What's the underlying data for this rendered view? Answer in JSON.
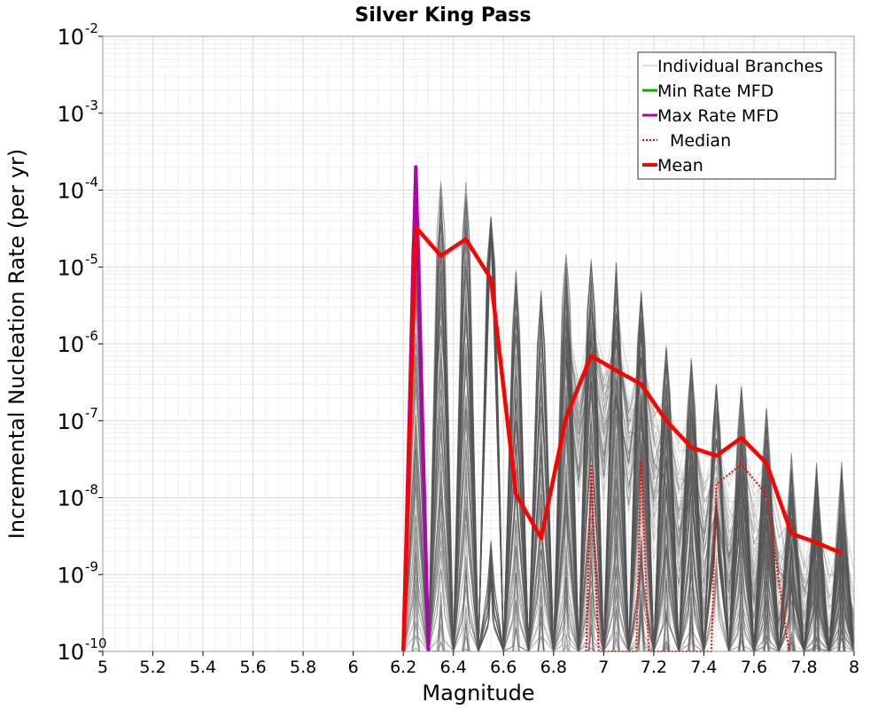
{
  "chart_data": {
    "type": "line",
    "title": "Silver King Pass",
    "xlabel": "Magnitude",
    "ylabel": "Incremental Nucleation Rate (per yr)",
    "xlim": [
      5,
      8
    ],
    "ylim": [
      1e-10,
      0.01
    ],
    "yscale": "log",
    "xticks": [
      "5",
      "5.2",
      "5.4",
      "5.6",
      "5.8",
      "6",
      "6.2",
      "6.4",
      "6.6",
      "6.8",
      "7",
      "7.2",
      "7.4",
      "7.6",
      "7.8",
      "8"
    ],
    "yticks": [
      {
        "base": "10",
        "exp": "-10"
      },
      {
        "base": "10",
        "exp": "-9"
      },
      {
        "base": "10",
        "exp": "-8"
      },
      {
        "base": "10",
        "exp": "-7"
      },
      {
        "base": "10",
        "exp": "-6"
      },
      {
        "base": "10",
        "exp": "-5"
      },
      {
        "base": "10",
        "exp": "-4"
      },
      {
        "base": "10",
        "exp": "-3"
      },
      {
        "base": "10",
        "exp": "-2"
      }
    ],
    "grid": true,
    "legend_position": "top-right",
    "legend": [
      "Individual Branches",
      "Min Rate MFD",
      "Max Rate MFD",
      "Median",
      "Mean"
    ],
    "series": [
      {
        "name": "Mean",
        "color": "#ff0000",
        "style": "solid",
        "x": [
          6.2,
          6.25,
          6.35,
          6.45,
          6.55,
          6.65,
          6.75,
          6.85,
          6.95,
          7.05,
          7.15,
          7.25,
          7.35,
          7.45,
          7.55,
          7.65,
          7.75,
          7.85,
          7.95
        ],
        "y": [
          1e-10,
          3.3e-05,
          1.4e-05,
          2.3e-05,
          7e-06,
          1.1e-08,
          3e-09,
          1.1e-07,
          7e-07,
          4.5e-07,
          3e-07,
          1e-07,
          4.5e-08,
          3.5e-08,
          6e-08,
          2.8e-08,
          3.4e-09,
          2.6e-09,
          1.9e-09
        ]
      },
      {
        "name": "Median",
        "color": "#ff0000",
        "style": "dotted",
        "x": [
          6.93,
          6.95,
          6.98,
          7.13,
          7.15,
          7.18,
          7.43,
          7.45,
          7.55,
          7.65,
          7.74
        ],
        "y": [
          1e-10,
          2.7e-08,
          1e-10,
          1e-10,
          3e-08,
          1e-10,
          1e-10,
          1.5e-08,
          2.7e-08,
          1.1e-08,
          1e-10
        ]
      },
      {
        "name": "Max Rate MFD",
        "color": "#b000b0",
        "style": "solid",
        "x": [
          6.2,
          6.25,
          6.3
        ],
        "y": [
          1e-10,
          0.0002,
          1e-10
        ]
      },
      {
        "name": "Min Rate MFD",
        "color": "#00b000",
        "style": "solid",
        "x": [],
        "y": []
      },
      {
        "name": "Individual Branches",
        "color": "#555555",
        "style": "solid",
        "peaks": [
          {
            "x": 6.25,
            "ymax": 0.00015
          },
          {
            "x": 6.35,
            "ymax": 0.00013
          },
          {
            "x": 6.45,
            "ymax": 0.00013
          },
          {
            "x": 6.55,
            "ymax": 8e-05
          },
          {
            "x": 6.65,
            "ymax": 1e-05
          },
          {
            "x": 6.75,
            "ymax": 5e-06
          },
          {
            "x": 6.85,
            "ymax": 1.5e-05
          },
          {
            "x": 6.95,
            "ymax": 1.3e-05
          },
          {
            "x": 7.05,
            "ymax": 1.2e-05
          },
          {
            "x": 7.15,
            "ymax": 5e-06
          },
          {
            "x": 7.25,
            "ymax": 1e-06
          },
          {
            "x": 7.35,
            "ymax": 7e-07
          },
          {
            "x": 7.45,
            "ymax": 3e-07
          },
          {
            "x": 7.55,
            "ymax": 3e-07
          },
          {
            "x": 7.65,
            "ymax": 1.5e-07
          },
          {
            "x": 7.75,
            "ymax": 4e-08
          },
          {
            "x": 7.85,
            "ymax": 3e-08
          },
          {
            "x": 7.95,
            "ymax": 3e-08
          }
        ]
      }
    ]
  }
}
